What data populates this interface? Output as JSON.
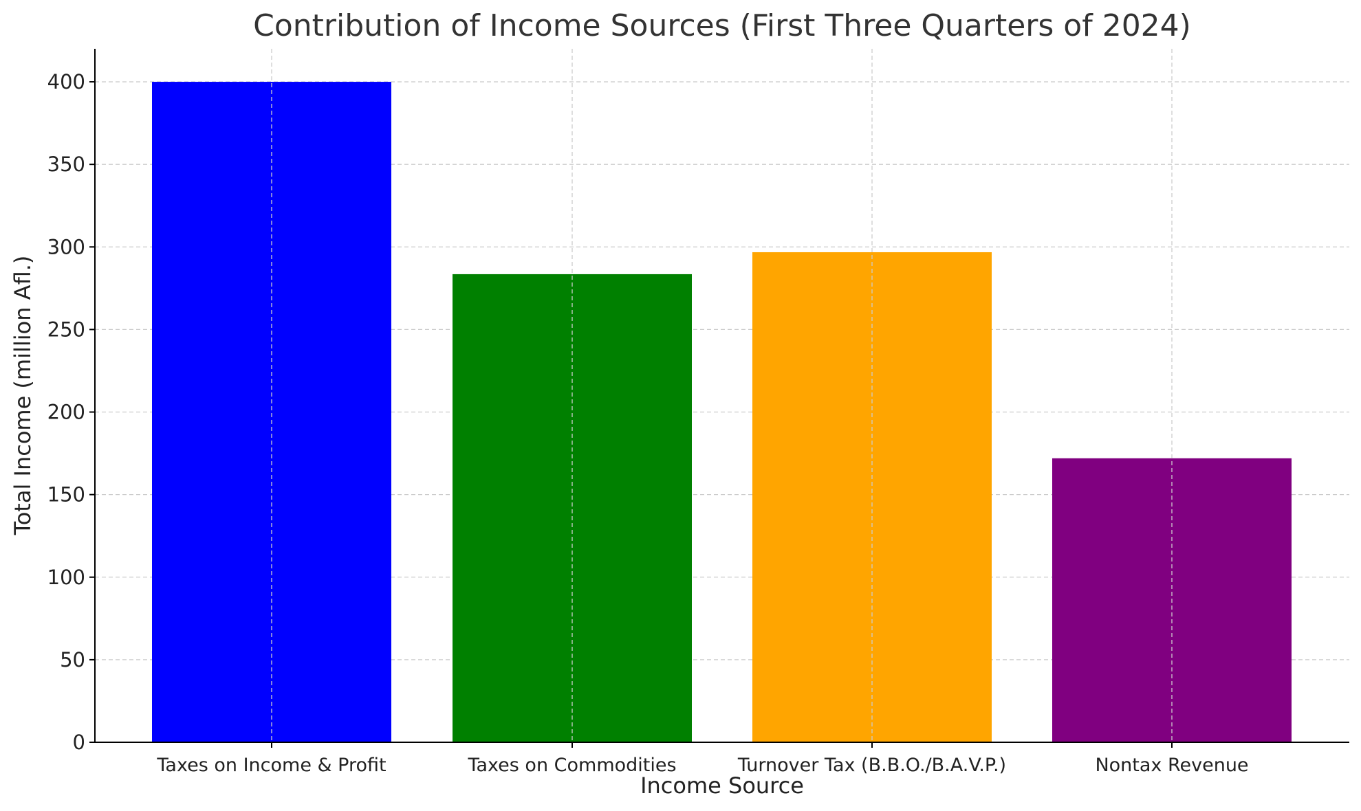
{
  "chart_data": {
    "type": "bar",
    "title": "Contribution of Income Sources (First Three Quarters of 2024)",
    "xlabel": "Income Source",
    "ylabel": "Total Income (million Afl.)",
    "categories": [
      "Taxes on Income & Profit",
      "Taxes on Commodities",
      "Turnover Tax (B.B.O./B.A.V.P.)",
      "Nontax Revenue"
    ],
    "values": [
      400,
      283.5,
      296.8,
      172
    ],
    "colors": [
      "#0000ff",
      "#008000",
      "#ffa500",
      "#800080"
    ],
    "ylim": [
      0,
      420
    ],
    "yticks": [
      0,
      50,
      100,
      150,
      200,
      250,
      300,
      350,
      400
    ],
    "grid": true,
    "legend": "none"
  }
}
